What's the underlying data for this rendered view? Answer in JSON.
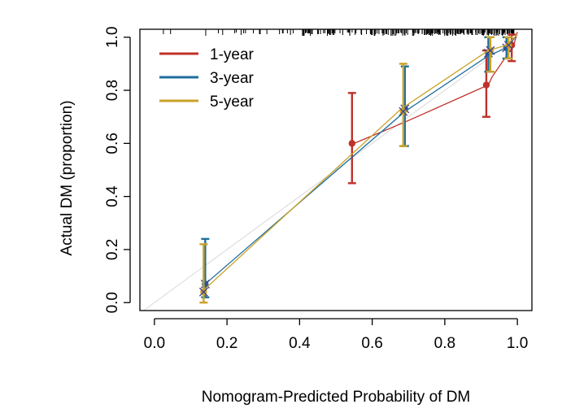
{
  "chart_data": {
    "type": "line",
    "title": "",
    "xlabel": "Nomogram-Predicted Probability of DM",
    "ylabel": "Actual DM (proportion)",
    "xlim": [
      -0.04,
      1.04
    ],
    "ylim": [
      -0.03,
      1.03
    ],
    "xticks": [
      "0.0",
      "0.2",
      "0.4",
      "0.6",
      "0.8",
      "1.0"
    ],
    "yticks": [
      "0.0",
      "0.2",
      "0.4",
      "0.6",
      "0.8",
      "1.0"
    ],
    "legend": {
      "position": "top-left",
      "entries": [
        "1-year",
        "3-year",
        "5-year"
      ]
    },
    "reference_line": {
      "from": [
        0,
        0
      ],
      "to": [
        1,
        1
      ],
      "color": "#d8d8d8"
    },
    "series": [
      {
        "name": "1-year",
        "color": "#c0312b",
        "points": [
          {
            "x": 0.55,
            "y": 0.6,
            "lo": 0.45,
            "hi": 0.79
          },
          {
            "x": 0.92,
            "y": 0.82,
            "lo": 0.7,
            "hi": 0.95
          },
          {
            "x": 0.99,
            "y": 0.97,
            "lo": 0.91,
            "hi": 1.01
          }
        ],
        "curve": [
          [
            0.55,
            0.6
          ],
          [
            0.69,
            0.68
          ],
          [
            0.92,
            0.82
          ],
          [
            0.93,
            0.85
          ],
          [
            0.99,
            0.97
          ],
          [
            1.0,
            1.02
          ]
        ]
      },
      {
        "name": "3-year",
        "color": "#1f6f9f",
        "points": [
          {
            "x": 0.14,
            "y": 0.07,
            "lo": 0.02,
            "hi": 0.24
          },
          {
            "x": 0.69,
            "y": 0.73,
            "lo": 0.59,
            "hi": 0.89
          },
          {
            "x": 0.92,
            "y": 0.94,
            "lo": 0.87,
            "hi": 1.0
          },
          {
            "x": 0.97,
            "y": 0.96,
            "lo": 0.92,
            "hi": 1.0
          }
        ],
        "curve": [
          [
            0.14,
            0.07
          ],
          [
            0.69,
            0.72
          ],
          [
            0.92,
            0.93
          ],
          [
            0.97,
            0.96
          ],
          [
            1.0,
            1.01
          ]
        ]
      },
      {
        "name": "5-year",
        "color": "#c9a227",
        "points": [
          {
            "x": 0.13,
            "y": 0.04,
            "lo": 0.0,
            "hi": 0.22
          },
          {
            "x": 0.68,
            "y": 0.72,
            "lo": 0.59,
            "hi": 0.9
          },
          {
            "x": 0.92,
            "y": 0.95,
            "lo": 0.87,
            "hi": 1.0
          },
          {
            "x": 0.97,
            "y": 0.97,
            "lo": 0.92,
            "hi": 1.0
          }
        ],
        "curve": [
          [
            0.13,
            0.04
          ],
          [
            0.68,
            0.73
          ],
          [
            0.92,
            0.95
          ],
          [
            0.97,
            0.97
          ],
          [
            1.0,
            1.01
          ]
        ]
      }
    ]
  }
}
